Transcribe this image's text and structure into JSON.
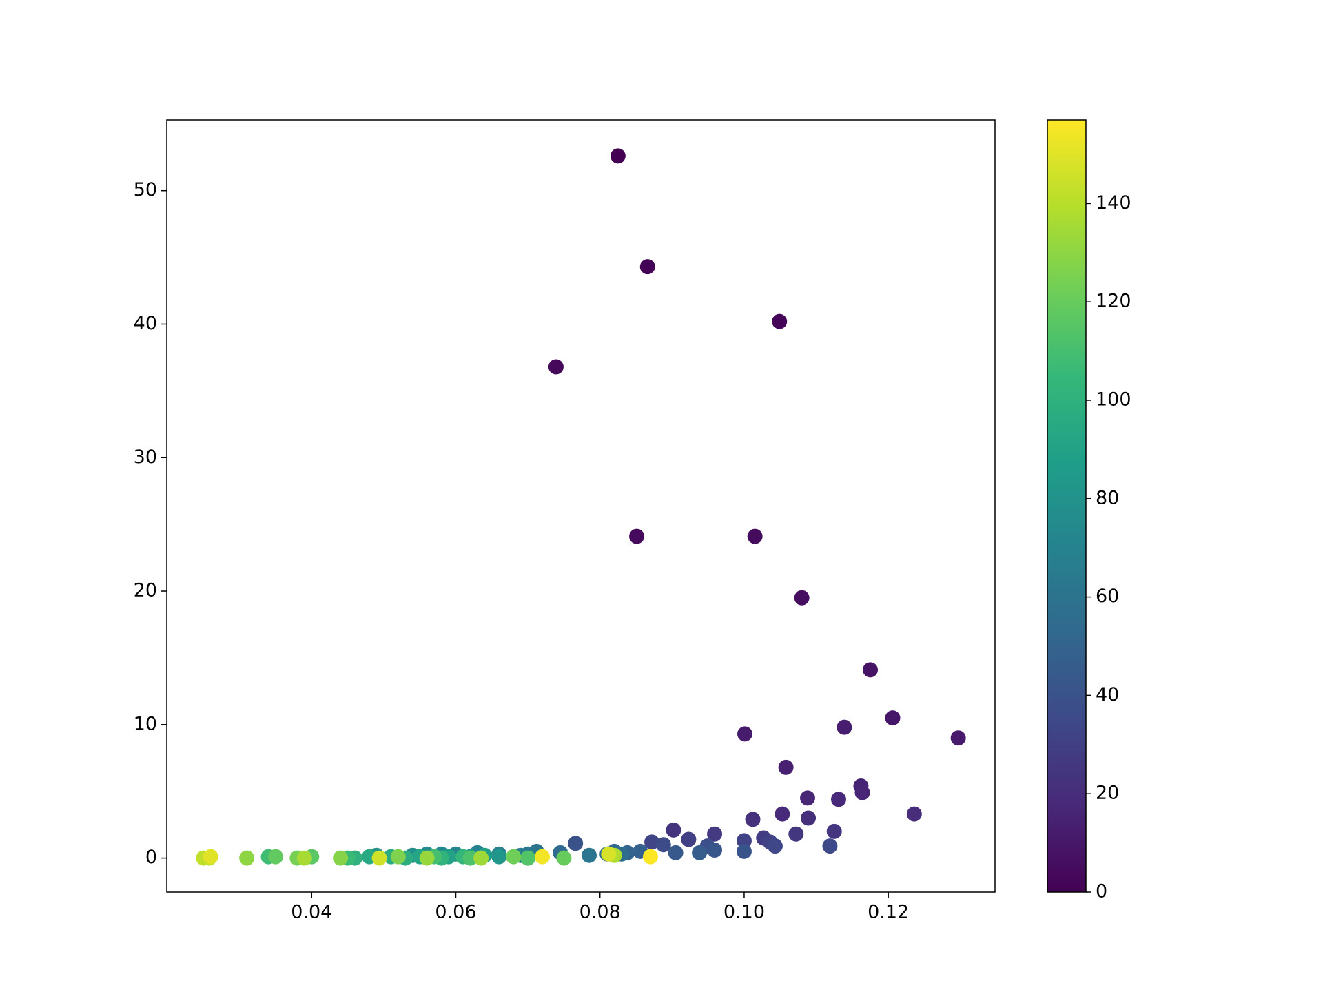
{
  "chart_data": {
    "type": "scatter",
    "colormap": "viridis",
    "clim": [
      0,
      157
    ],
    "cticks": [
      0,
      20,
      40,
      60,
      80,
      100,
      120,
      140
    ],
    "xlim": [
      0.0199,
      0.1348
    ],
    "xticks": [
      0.04,
      0.06,
      0.08,
      0.1,
      0.12
    ],
    "ylim": [
      -2.55,
      55.3
    ],
    "yticks": [
      0,
      10,
      20,
      30,
      40,
      50
    ],
    "series": [
      {
        "x": [
          0.0825,
          0.0866,
          0.1049,
          0.0739,
          0.0851,
          0.1015,
          0.108,
          0.1175,
          0.1206,
          0.1297,
          0.1001,
          0.1139,
          0.1058,
          0.1162,
          0.1164,
          0.1088,
          0.1131,
          0.1053,
          0.1236,
          0.1089,
          0.1012,
          0.0902,
          0.1125,
          0.1072,
          0.0959,
          0.1027,
          0.0923,
          0.1036,
          0.1,
          0.0872,
          0.1043,
          0.1119,
          0.0888,
          0.0949,
          0.0766,
          0.1,
          0.0959,
          0.0905,
          0.0938,
          0.0856,
          0.0838,
          0.082,
          0.0745,
          0.083,
          0.081,
          0.0712,
          0.0785,
          0.07,
          0.069,
          0.066,
          0.063,
          0.06,
          0.058,
          0.056,
          0.054,
          0.049,
          0.066,
          0.062,
          0.07,
          0.064,
          0.059,
          0.055,
          0.048,
          0.051,
          0.053,
          0.046,
          0.058,
          0.061,
          0.045,
          0.034,
          0.057,
          0.062,
          0.07,
          0.04,
          0.035,
          0.075,
          0.068,
          0.038,
          0.052,
          0.044,
          0.031,
          0.056,
          0.0635,
          0.039,
          0.082,
          0.0258,
          0.025,
          0.0494,
          0.0812,
          0.026,
          0.072,
          0.087
        ],
        "values": [
          52.6,
          44.3,
          40.2,
          36.8,
          24.1,
          24.1,
          19.5,
          14.1,
          10.5,
          9.0,
          9.3,
          9.8,
          6.8,
          5.4,
          4.9,
          4.5,
          4.4,
          3.3,
          3.3,
          3.0,
          2.9,
          2.1,
          2.0,
          1.8,
          1.8,
          1.5,
          1.4,
          1.2,
          1.3,
          1.2,
          0.9,
          0.9,
          1.0,
          0.9,
          1.1,
          0.5,
          0.6,
          0.4,
          0.4,
          0.5,
          0.4,
          0.5,
          0.4,
          0.3,
          0.3,
          0.5,
          0.2,
          0.3,
          0.2,
          0.3,
          0.4,
          0.3,
          0.3,
          0.3,
          0.2,
          0.2,
          0.1,
          0.1,
          0.0,
          0.2,
          0.1,
          0.1,
          0.1,
          0.1,
          0.0,
          0.0,
          0.0,
          0.1,
          0.0,
          0.1,
          0.1,
          0.0,
          0.0,
          0.1,
          0.1,
          0.0,
          0.1,
          0.0,
          0.1,
          0.0,
          0.0,
          0.0,
          0.0,
          0.0,
          0.2,
          0.0,
          0.0,
          0.0,
          0.3,
          0.1,
          0.1,
          0.1
        ],
        "c": [
          0,
          1,
          2,
          3,
          4,
          5,
          6,
          8,
          10,
          11,
          12,
          13,
          14,
          15,
          16,
          17,
          18,
          19,
          20,
          21,
          22,
          24,
          25,
          26,
          27,
          28,
          30,
          31,
          32,
          33,
          34,
          35,
          36,
          38,
          40,
          41,
          42,
          44,
          46,
          48,
          50,
          52,
          54,
          56,
          58,
          60,
          62,
          64,
          66,
          68,
          70,
          72,
          74,
          76,
          78,
          80,
          82,
          84,
          86,
          88,
          90,
          92,
          94,
          96,
          98,
          100,
          102,
          104,
          106,
          108,
          110,
          112,
          114,
          116,
          118,
          120,
          122,
          124,
          126,
          128,
          130,
          132,
          134,
          136,
          138,
          140,
          142,
          146,
          148,
          150,
          154,
          157
        ]
      }
    ]
  }
}
